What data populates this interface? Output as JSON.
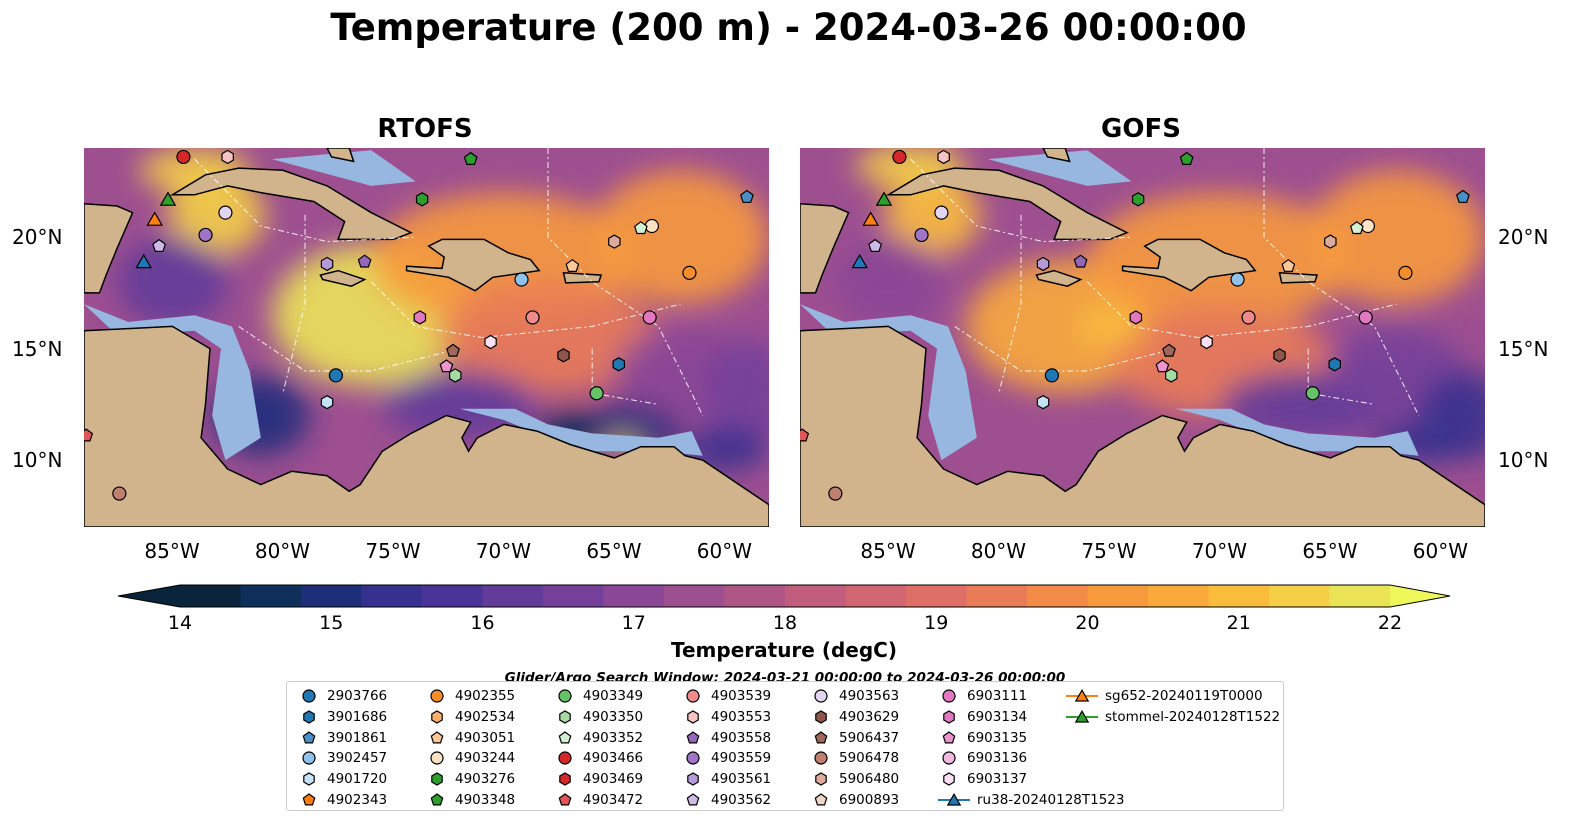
{
  "title": "Temperature (200 m) - 2024-03-26 00:00:00",
  "panels": [
    {
      "title": "RTOFS",
      "model": "rtofs"
    },
    {
      "title": "GOFS",
      "model": "gofs"
    }
  ],
  "axes": {
    "lon_ticks": [
      "85°W",
      "80°W",
      "75°W",
      "70°W",
      "65°W",
      "60°W"
    ],
    "lat_ticks": [
      "20°N",
      "15°N",
      "10°N"
    ],
    "lon_range": [
      -89,
      -58
    ],
    "lat_range": [
      7,
      24
    ]
  },
  "colorbar": {
    "label": "Temperature (degC)",
    "ticks": [
      "14",
      "15",
      "16",
      "17",
      "18",
      "19",
      "20",
      "21",
      "22"
    ],
    "range": [
      14,
      22
    ],
    "extend": "both",
    "colors": [
      "#08233a",
      "#0d2f5a",
      "#1d2f7b",
      "#36318e",
      "#4b3497",
      "#613a9a",
      "#75409a",
      "#8a4796",
      "#9d4f90",
      "#b05687",
      "#c15e7d",
      "#d16672",
      "#de6f66",
      "#e97b57",
      "#f28a48",
      "#f79a3d",
      "#f9aa3a",
      "#f9bc3d",
      "#f4cf47",
      "#ebe356"
    ]
  },
  "map_colors": {
    "land": "#d2b48c",
    "shelf": "#97b6e0",
    "deep": "#08233a",
    "coast": "#000000"
  },
  "legend": {
    "title": "Glider/Argo Search Window: 2024-03-21 00:00:00 to 2024-03-26 00:00:00",
    "items": [
      {
        "label": "2903766",
        "marker": "circle",
        "color": "#1f77b4"
      },
      {
        "label": "3901686",
        "marker": "hexagon",
        "color": "#1f77b4"
      },
      {
        "label": "3901861",
        "marker": "pentagon",
        "color": "#4a90c8"
      },
      {
        "label": "3902457",
        "marker": "circle",
        "color": "#8fc2ea"
      },
      {
        "label": "4901720",
        "marker": "hexagon",
        "color": "#c4e1f6"
      },
      {
        "label": "4902343",
        "marker": "pentagon",
        "color": "#ff7f0e"
      },
      {
        "label": "4902355",
        "marker": "circle",
        "color": "#f58d2a"
      },
      {
        "label": "4902534",
        "marker": "hexagon",
        "color": "#fdae6b"
      },
      {
        "label": "4903051",
        "marker": "pentagon",
        "color": "#fdc896"
      },
      {
        "label": "4903244",
        "marker": "circle",
        "color": "#fde3c4"
      },
      {
        "label": "4903276",
        "marker": "hexagon",
        "color": "#2ca02c"
      },
      {
        "label": "4903348",
        "marker": "pentagon",
        "color": "#2ca02c"
      },
      {
        "label": "4903349",
        "marker": "circle",
        "color": "#66c266"
      },
      {
        "label": "4903350",
        "marker": "hexagon",
        "color": "#a3dba3"
      },
      {
        "label": "4903352",
        "marker": "pentagon",
        "color": "#d4f0d4"
      },
      {
        "label": "4903466",
        "marker": "circle",
        "color": "#d62728"
      },
      {
        "label": "4903469",
        "marker": "hexagon",
        "color": "#d62728"
      },
      {
        "label": "4903472",
        "marker": "pentagon",
        "color": "#e05555"
      },
      {
        "label": "4903539",
        "marker": "circle",
        "color": "#f08b8b"
      },
      {
        "label": "4903553",
        "marker": "hexagon",
        "color": "#f8c3c3"
      },
      {
        "label": "4903558",
        "marker": "pentagon",
        "color": "#9467bd"
      },
      {
        "label": "4903559",
        "marker": "circle",
        "color": "#9f75c8"
      },
      {
        "label": "4903561",
        "marker": "hexagon",
        "color": "#b69ad8"
      },
      {
        "label": "4903562",
        "marker": "pentagon",
        "color": "#cfbbe8"
      },
      {
        "label": "4903563",
        "marker": "circle",
        "color": "#e2d5f2"
      },
      {
        "label": "4903629",
        "marker": "hexagon",
        "color": "#8c564b"
      },
      {
        "label": "5906437",
        "marker": "pentagon",
        "color": "#a0675b"
      },
      {
        "label": "5906478",
        "marker": "circle",
        "color": "#c08070"
      },
      {
        "label": "5906480",
        "marker": "hexagon",
        "color": "#dcab9c"
      },
      {
        "label": "6900893",
        "marker": "pentagon",
        "color": "#f1d5c9"
      },
      {
        "label": "6903111",
        "marker": "circle",
        "color": "#e377c2"
      },
      {
        "label": "6903134",
        "marker": "hexagon",
        "color": "#e377c2"
      },
      {
        "label": "6903135",
        "marker": "pentagon",
        "color": "#ec93d0"
      },
      {
        "label": "6903136",
        "marker": "circle",
        "color": "#f3b8e0"
      },
      {
        "label": "6903137",
        "marker": "hexagon",
        "color": "#fae0f1"
      },
      {
        "label": "ru38-20240128T1523",
        "marker": "triangle-line",
        "color": "#1f77b4"
      },
      {
        "label": "sg652-20240119T0000",
        "marker": "triangle-line",
        "color": "#ff7f0e"
      },
      {
        "label": "stommel-20240128T1522",
        "marker": "triangle-line",
        "color": "#2ca02c"
      }
    ]
  },
  "floats": [
    {
      "id": "4903466",
      "lon": -84.5,
      "lat": 23.6
    },
    {
      "id": "4903553",
      "lon": -82.5,
      "lat": 23.6
    },
    {
      "id": "4903348",
      "lon": -71.5,
      "lat": 23.5
    },
    {
      "id": "4903276",
      "lon": -73.7,
      "lat": 21.7
    },
    {
      "id": "3901861",
      "lon": -59.0,
      "lat": 21.8
    },
    {
      "id": "4903563",
      "lon": -82.6,
      "lat": 21.1
    },
    {
      "id": "4903559",
      "lon": -83.5,
      "lat": 20.1
    },
    {
      "id": "4903562",
      "lon": -85.6,
      "lat": 19.6
    },
    {
      "id": "4903244",
      "lon": -63.3,
      "lat": 20.5
    },
    {
      "id": "4903352",
      "lon": -63.8,
      "lat": 20.4
    },
    {
      "id": "5906480",
      "lon": -65.0,
      "lat": 19.8
    },
    {
      "id": "4903051",
      "lon": -66.9,
      "lat": 18.7
    },
    {
      "id": "4903558",
      "lon": -76.3,
      "lat": 18.9
    },
    {
      "id": "4903561",
      "lon": -78.0,
      "lat": 18.8
    },
    {
      "id": "4902355",
      "lon": -61.6,
      "lat": 18.4
    },
    {
      "id": "3902457",
      "lon": -69.2,
      "lat": 18.1
    },
    {
      "id": "6903134",
      "lon": -73.8,
      "lat": 16.4
    },
    {
      "id": "4903539",
      "lon": -68.7,
      "lat": 16.4
    },
    {
      "id": "6903111",
      "lon": -63.4,
      "lat": 16.4
    },
    {
      "id": "6903137",
      "lon": -70.6,
      "lat": 15.3
    },
    {
      "id": "5906437",
      "lon": -72.3,
      "lat": 14.9
    },
    {
      "id": "4903629",
      "lon": -67.3,
      "lat": 14.7
    },
    {
      "id": "6903135",
      "lon": -72.6,
      "lat": 14.2
    },
    {
      "id": "4903350",
      "lon": -72.2,
      "lat": 13.8
    },
    {
      "id": "3901686",
      "lon": -64.8,
      "lat": 14.3
    },
    {
      "id": "2903766",
      "lon": -77.6,
      "lat": 13.8
    },
    {
      "id": "4903349",
      "lon": -65.8,
      "lat": 13.0
    },
    {
      "id": "4901720",
      "lon": -78.0,
      "lat": 12.6
    },
    {
      "id": "4903472",
      "lon": -88.9,
      "lat": 11.1
    },
    {
      "id": "5906478",
      "lon": -87.4,
      "lat": 8.5
    }
  ],
  "gliders": [
    {
      "id": "stommel-20240128T1522",
      "lon": -85.2,
      "lat": 21.7
    },
    {
      "id": "sg652-20240119T0000",
      "lon": -85.8,
      "lat": 20.8
    },
    {
      "id": "ru38-20240128T1523",
      "lon": -86.3,
      "lat": 18.9
    }
  ]
}
